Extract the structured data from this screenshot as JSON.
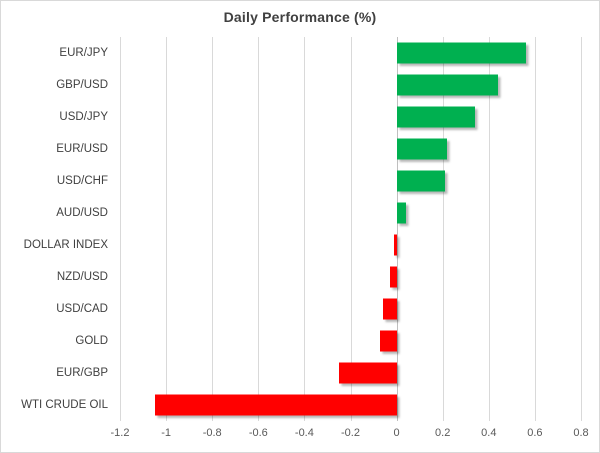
{
  "chart_data": {
    "type": "bar",
    "orientation": "horizontal",
    "title": "Daily Performance (%)",
    "categories": [
      "EUR/JPY",
      "GBP/USD",
      "USD/JPY",
      "EUR/USD",
      "USD/CHF",
      "AUD/USD",
      "DOLLAR INDEX",
      "NZD/USD",
      "USD/CAD",
      "GOLD",
      "EUR/GBP",
      "WTI CRUDE OIL"
    ],
    "values": [
      0.56,
      0.44,
      0.34,
      0.22,
      0.21,
      0.04,
      -0.01,
      -0.03,
      -0.06,
      -0.07,
      -0.25,
      -1.05
    ],
    "xlabel": "",
    "ylabel": "",
    "xlim": [
      -1.2,
      0.8
    ],
    "xticks": [
      -1.2,
      -1,
      -0.8,
      -0.6,
      -0.4,
      -0.2,
      0,
      0.2,
      0.4,
      0.6,
      0.8
    ],
    "xtick_labels": [
      "-1.2",
      "-1",
      "-0.8",
      "-0.6",
      "-0.4",
      "-0.2",
      "0",
      "0.2",
      "0.4",
      "0.6",
      "0.8"
    ],
    "grid": true,
    "legend": false,
    "colors": {
      "positive": "#00B050",
      "negative": "#FF0000",
      "gridline": "#D9D9D9",
      "zero_line": "#BFBFBF",
      "title_text": "#404040",
      "category_text": "#404040",
      "tick_text": "#595959",
      "background": "#FFFFFF",
      "border": "#D9D9D9"
    }
  }
}
